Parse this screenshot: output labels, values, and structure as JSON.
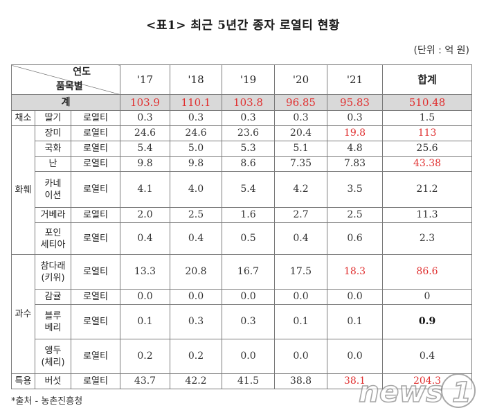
{
  "title": "<표1> 최근 5년간 종자 로열티 현황",
  "unit": "(단위 : 억 원)",
  "header": {
    "year_label": "연도",
    "item_label": "품목별",
    "years": [
      "'17",
      "'18",
      "'19",
      "'20",
      "'21"
    ],
    "total_label": "합계"
  },
  "total_row": {
    "label": "계",
    "values": [
      "103.9",
      "110.1",
      "103.8",
      "96.85",
      "95.83",
      "510.48"
    ]
  },
  "rows": [
    {
      "cat": "채소",
      "item": "딸기",
      "kind": "로열티",
      "values": [
        "0.3",
        "0.3",
        "0.3",
        "0.3",
        "0.3",
        "1.5"
      ]
    },
    {
      "cat": "화훼",
      "item": "장미",
      "kind": "로열티",
      "values": [
        "24.6",
        "24.6",
        "23.6",
        "20.4",
        "19.8",
        "113"
      ]
    },
    {
      "item": "국화",
      "kind": "로열티",
      "values": [
        "5.4",
        "5.0",
        "5.3",
        "5.1",
        "4.8",
        "25.6"
      ]
    },
    {
      "item": "난",
      "kind": "로열티",
      "values": [
        "9.8",
        "9.8",
        "8.6",
        "7.35",
        "7.83",
        "43.38"
      ]
    },
    {
      "item": "카네\n이션",
      "kind": "로열티",
      "values": [
        "4.1",
        "4.0",
        "5.4",
        "4.2",
        "3.5",
        "21.2"
      ]
    },
    {
      "item": "거베라",
      "kind": "로열티",
      "values": [
        "2.0",
        "2.5",
        "1.6",
        "2.7",
        "2.5",
        "11.3"
      ]
    },
    {
      "item": "포인\n세티아",
      "kind": "로열티",
      "values": [
        "0.4",
        "0.4",
        "0.5",
        "0.4",
        "0.6",
        "2.3"
      ]
    },
    {
      "cat": "과수",
      "item": "참다래\n(키위)",
      "kind": "로열티",
      "values": [
        "13.3",
        "20.8",
        "16.7",
        "17.5",
        "18.3",
        "86.6"
      ]
    },
    {
      "item": "감귤",
      "kind": "로열티",
      "values": [
        "0.0",
        "0.0",
        "0.0",
        "0.0",
        "0.0",
        "0"
      ]
    },
    {
      "item": "블루\n베리",
      "kind": "로열티",
      "values": [
        "0.1",
        "0.3",
        "0.3",
        "0.1",
        "0.1",
        "0.9"
      ]
    },
    {
      "item": "앵두\n(체리)",
      "kind": "로열티",
      "values": [
        "0.2",
        "0.2",
        "0.0",
        "0.0",
        "0.0",
        "0.4"
      ]
    },
    {
      "cat": "특용",
      "item": "버섯",
      "kind": "로열티",
      "values": [
        "43.7",
        "42.2",
        "41.5",
        "38.8",
        "38.1",
        "204.3"
      ]
    }
  ],
  "source": "*출처 - 농촌진흥청",
  "watermark": "news1",
  "colors": {
    "highlight": "#e03030",
    "sum_bg": "#d9d9d9"
  }
}
